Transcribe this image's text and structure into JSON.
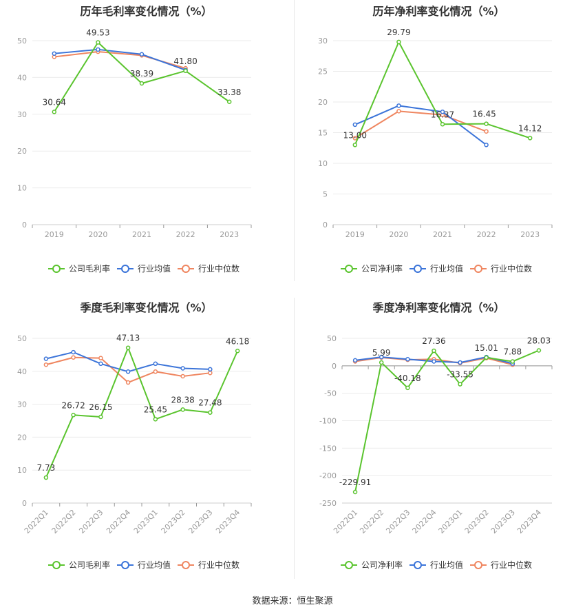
{
  "source_label": "数据来源：恒生聚源",
  "colors": {
    "company": "#5ac42e",
    "avg": "#3b74d9",
    "median": "#ef8660"
  },
  "chart_data": [
    {
      "type": "line",
      "title": "历年毛利率变化情况（%）",
      "categories": [
        "2019",
        "2020",
        "2021",
        "2022",
        "2023"
      ],
      "ylim": [
        0,
        50
      ],
      "yticks": [
        0,
        10,
        20,
        30,
        40,
        50
      ],
      "grid": true,
      "legend_position": "bottom",
      "series": [
        {
          "name": "公司毛利率",
          "values": [
            30.64,
            49.53,
            38.39,
            41.8,
            33.38
          ],
          "labels": [
            "30.64",
            "49.53",
            "38.39",
            "41.80",
            "33.38"
          ]
        },
        {
          "name": "行业均值",
          "values": [
            46.5,
            47.6,
            46.3,
            42.0,
            null
          ]
        },
        {
          "name": "行业中位数",
          "values": [
            45.6,
            47.0,
            46.0,
            42.5,
            null
          ]
        }
      ]
    },
    {
      "type": "line",
      "title": "历年净利率变化情况（%）",
      "categories": [
        "2019",
        "2020",
        "2021",
        "2022",
        "2023"
      ],
      "ylim": [
        0,
        30
      ],
      "yticks": [
        0,
        5,
        10,
        15,
        20,
        25,
        30
      ],
      "grid": true,
      "legend_position": "bottom",
      "series": [
        {
          "name": "公司净利率",
          "values": [
            13.0,
            29.79,
            16.37,
            16.45,
            14.12
          ],
          "labels": [
            "13.00",
            "29.79",
            "16.37",
            "16.45",
            "14.12"
          ]
        },
        {
          "name": "行业均值",
          "values": [
            16.3,
            19.4,
            18.4,
            13.0,
            null
          ]
        },
        {
          "name": "行业中位数",
          "values": [
            14.1,
            18.5,
            17.9,
            15.2,
            null
          ]
        }
      ]
    },
    {
      "type": "line",
      "title": "季度毛利率变化情况（%）",
      "categories": [
        "2022Q1",
        "2022Q2",
        "2022Q3",
        "2022Q4",
        "2023Q1",
        "2023Q2",
        "2023Q3",
        "2023Q4"
      ],
      "ylim": [
        0,
        50
      ],
      "yticks": [
        0,
        10,
        20,
        30,
        40,
        50
      ],
      "grid": true,
      "legend_position": "bottom",
      "series": [
        {
          "name": "公司毛利率",
          "values": [
            7.73,
            26.72,
            26.15,
            47.13,
            25.45,
            28.38,
            27.48,
            46.18
          ],
          "labels": [
            "7.73",
            "26.72",
            "26.15",
            "47.13",
            "25.45",
            "28.38",
            "27.48",
            "46.18"
          ]
        },
        {
          "name": "行业均值",
          "values": [
            43.8,
            45.8,
            42.3,
            39.9,
            42.3,
            40.9,
            40.6,
            null
          ]
        },
        {
          "name": "行业中位数",
          "values": [
            42.0,
            44.2,
            44.0,
            36.6,
            39.9,
            38.5,
            39.5,
            null
          ]
        }
      ]
    },
    {
      "type": "line",
      "title": "季度净利率变化情况（%）",
      "categories": [
        "2022Q1",
        "2022Q2",
        "2022Q3",
        "2022Q4",
        "2023Q1",
        "2023Q2",
        "2023Q3",
        "2023Q4"
      ],
      "ylim": [
        -250,
        50
      ],
      "yticks": [
        -250,
        -200,
        -150,
        -100,
        -50,
        0,
        50
      ],
      "grid": true,
      "legend_position": "bottom",
      "series": [
        {
          "name": "公司净利率",
          "values": [
            -229.91,
            5.99,
            -40.18,
            27.36,
            -33.55,
            15.01,
            7.88,
            28.03
          ],
          "labels": [
            "-229.91",
            "5.99",
            "-40.18",
            "27.36",
            "-33.55",
            "15.01",
            "7.88",
            "28.03"
          ]
        },
        {
          "name": "行业均值",
          "values": [
            10.0,
            16.0,
            12.0,
            8.0,
            6.0,
            16.0,
            4.0,
            null
          ]
        },
        {
          "name": "行业中位数",
          "values": [
            8.0,
            15.0,
            11.0,
            12.0,
            5.0,
            14.0,
            2.0,
            null
          ]
        }
      ]
    }
  ]
}
